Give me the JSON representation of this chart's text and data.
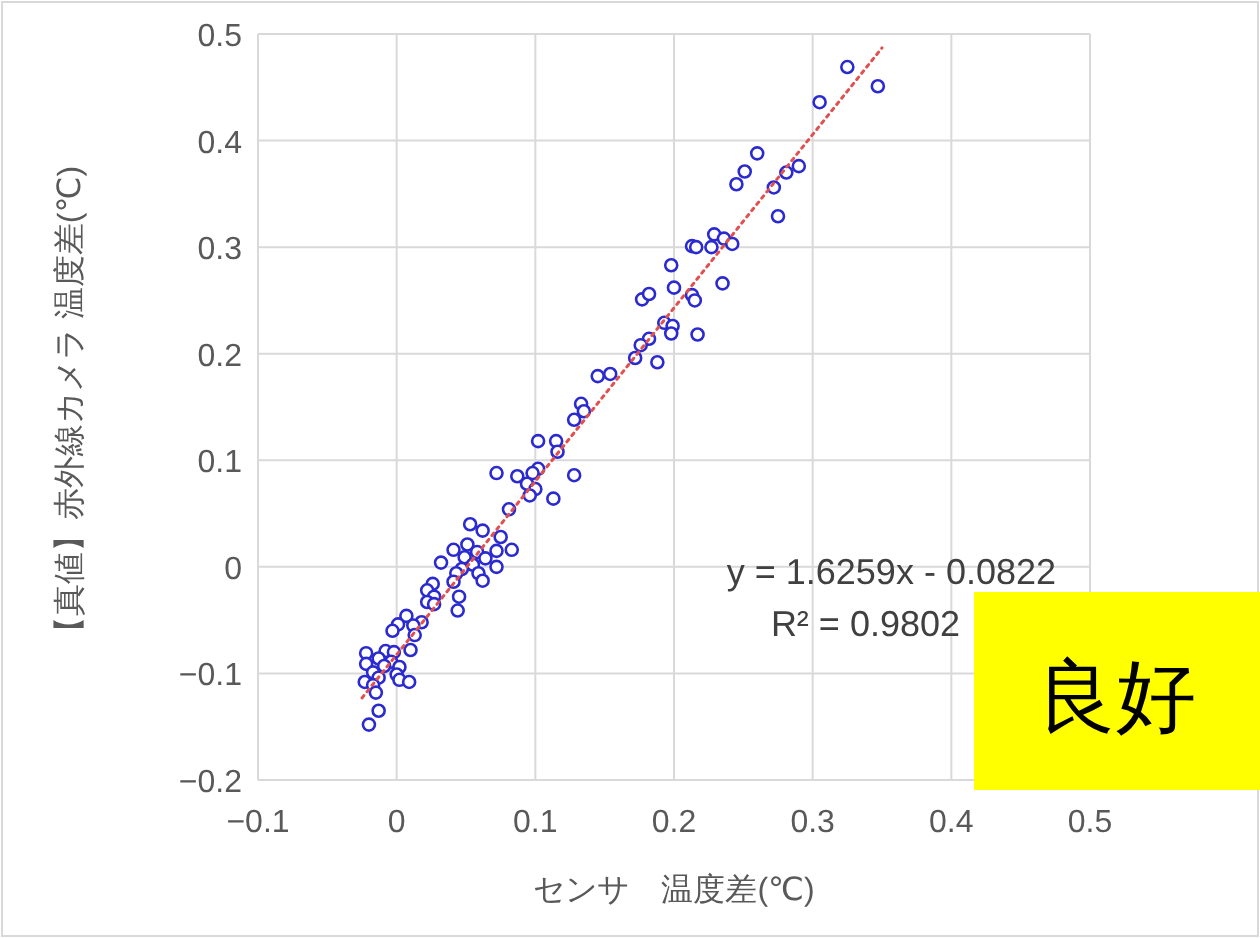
{
  "chart_data": {
    "type": "scatter",
    "xlabel": "センサ　温度差(℃)",
    "ylabel": "【真値】赤外線カメラ 温度差(℃)",
    "xlim": [
      -0.1,
      0.5
    ],
    "xticks": [
      {
        "value": -0.1,
        "label": "−0.1"
      },
      0,
      0.1,
      0.2,
      0.3,
      0.4,
      0.5
    ],
    "ylim": [
      -0.2,
      0.5
    ],
    "yticks": [
      {
        "value": -0.2,
        "label": "−0.2"
      },
      {
        "value": -0.1,
        "label": "−0.1"
      },
      0,
      0.1,
      0.2,
      0.3,
      0.4,
      0.5
    ],
    "grid": true,
    "series": [
      {
        "marker": "circle",
        "color": "#2a2ad0",
        "x": [
          0.325,
          0.347,
          0.305,
          0.26,
          0.251,
          0.245,
          0.272,
          0.281,
          0.29,
          0.275,
          0.229,
          0.236,
          0.242,
          0.213,
          0.216,
          0.227,
          0.198,
          0.235,
          0.2,
          0.177,
          0.182,
          0.213,
          0.215,
          0.193,
          0.199,
          0.198,
          0.217,
          0.182,
          0.176,
          0.172,
          0.188,
          0.145,
          0.154,
          0.133,
          0.135,
          0.128,
          0.102,
          0.115,
          0.116,
          0.072,
          0.087,
          0.128,
          0.102,
          0.098,
          0.094,
          0.1,
          0.096,
          0.113,
          0.081,
          0.053,
          0.062,
          0.075,
          0.041,
          0.051,
          0.083,
          0.072,
          0.058,
          0.049,
          0.064,
          0.032,
          0.055,
          0.047,
          0.072,
          0.059,
          0.043,
          0.062,
          0.041,
          0.026,
          0.022,
          0.027,
          0.045,
          0.022,
          0.027,
          0.044,
          0.007,
          0.018,
          0.001,
          0.012,
          -0.003,
          0.013,
          0.01,
          -0.008,
          -0.022,
          -0.002,
          -0.013,
          -0.004,
          -0.022,
          0.002,
          -0.009,
          -0.017,
          0.0,
          -0.013,
          -0.023,
          0.002,
          0.009,
          -0.017,
          -0.015,
          -0.013,
          -0.02
        ],
        "values": [
          0.469,
          0.451,
          0.436,
          0.388,
          0.371,
          0.359,
          0.356,
          0.37,
          0.376,
          0.329,
          0.312,
          0.308,
          0.303,
          0.301,
          0.3,
          0.3,
          0.283,
          0.266,
          0.262,
          0.251,
          0.256,
          0.255,
          0.25,
          0.229,
          0.226,
          0.219,
          0.218,
          0.214,
          0.208,
          0.196,
          0.192,
          0.179,
          0.181,
          0.153,
          0.146,
          0.138,
          0.118,
          0.118,
          0.108,
          0.088,
          0.085,
          0.086,
          0.092,
          0.088,
          0.078,
          0.073,
          0.067,
          0.064,
          0.054,
          0.04,
          0.034,
          0.028,
          0.016,
          0.021,
          0.016,
          0.015,
          0.014,
          0.009,
          0.008,
          0.004,
          0.002,
          -0.002,
          0.0,
          -0.006,
          -0.006,
          -0.013,
          -0.014,
          -0.016,
          -0.022,
          -0.028,
          -0.028,
          -0.033,
          -0.035,
          -0.041,
          -0.046,
          -0.052,
          -0.054,
          -0.055,
          -0.06,
          -0.064,
          -0.078,
          -0.079,
          -0.081,
          -0.08,
          -0.086,
          -0.089,
          -0.091,
          -0.094,
          -0.093,
          -0.099,
          -0.101,
          -0.104,
          -0.108,
          -0.106,
          -0.108,
          -0.111,
          -0.118,
          -0.135,
          -0.148
        ]
      },
      {
        "type": "line",
        "color": "#e05050",
        "line_style": "dotted",
        "x": [
          -0.025,
          0.35
        ],
        "values": [
          -0.123,
          0.487
        ]
      }
    ],
    "annotations": [
      "y = 1.6259x - 0.0822",
      "R² = 0.9802",
      "良好"
    ]
  }
}
